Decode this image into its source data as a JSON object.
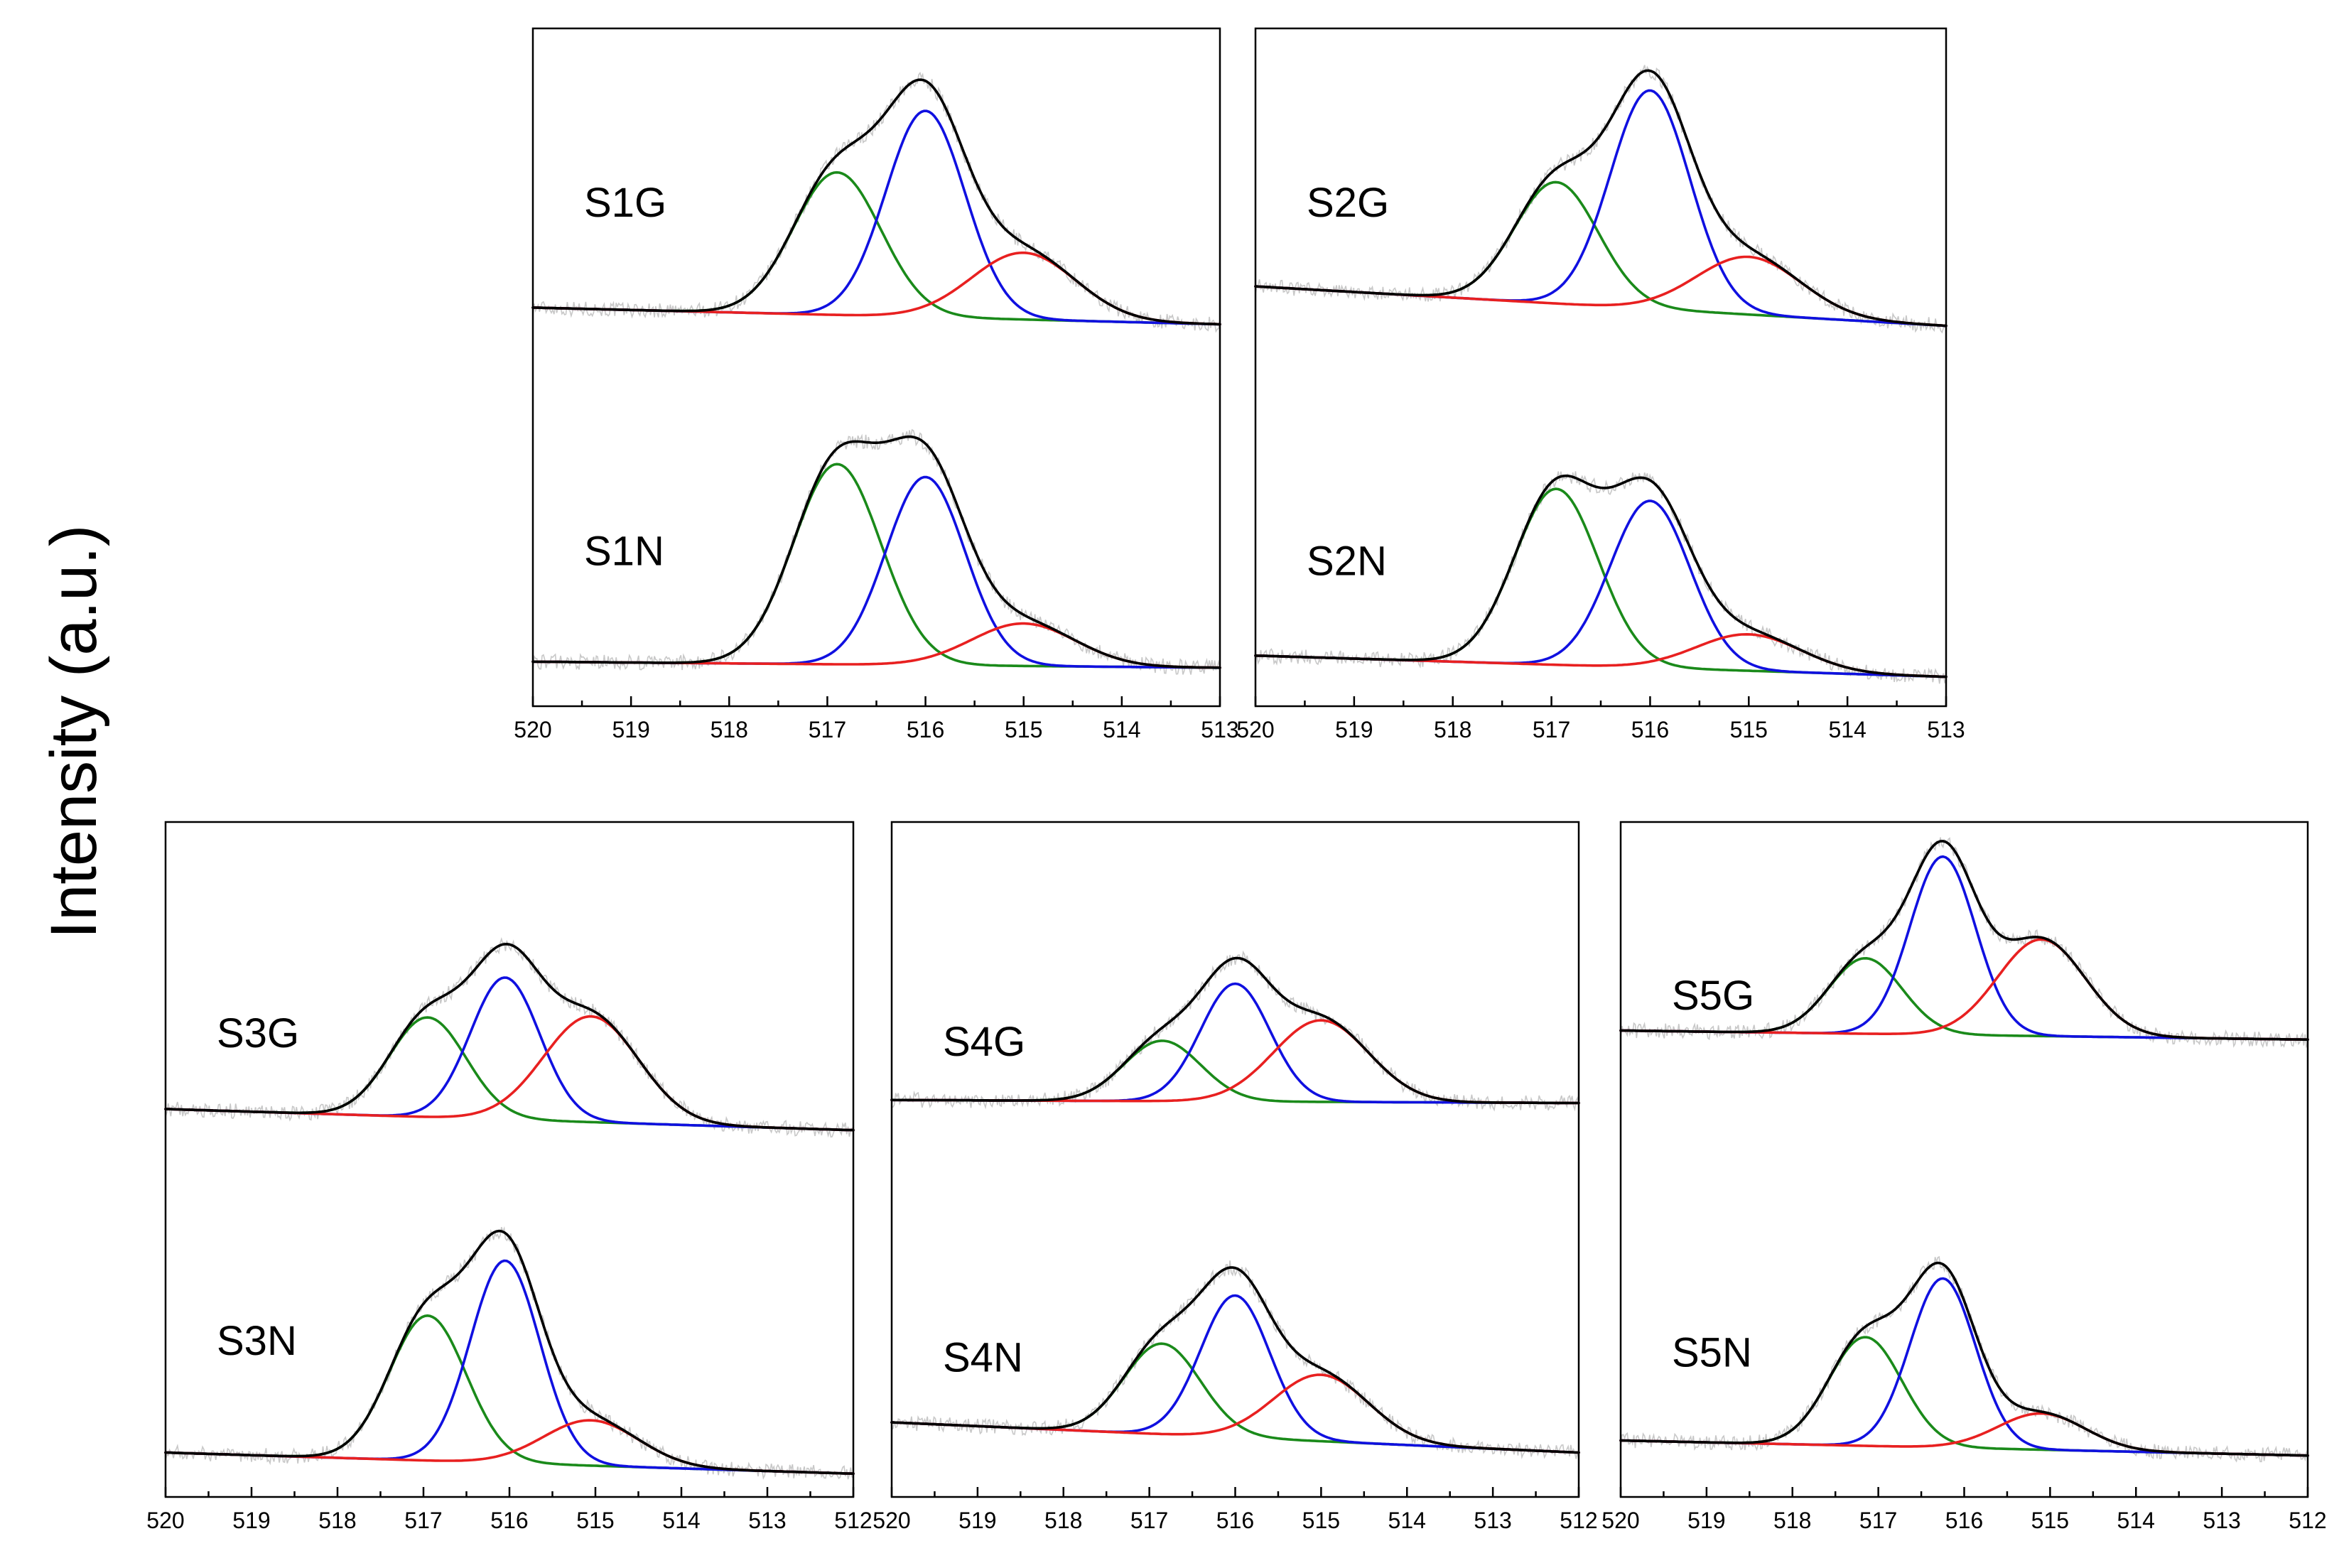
{
  "y_axis_label": "Intensity (a.u.)",
  "colors": {
    "envelope": "#000000",
    "peak_517": "#1a8a1a",
    "peak_516": "#1010e0",
    "peak_515": "#e82020",
    "raw": "#c8c8c8"
  },
  "chart_data": [
    {
      "type": "line",
      "panel": "top-left",
      "x_reversed": true,
      "xlim": [
        520,
        513
      ],
      "x_ticks": [
        "520",
        "519",
        "518",
        "517",
        "516",
        "515",
        "514",
        "513"
      ],
      "xlabel": "",
      "ylabel": "Intensity (a.u.)",
      "samples": [
        {
          "name": "S1G",
          "baseline_left": 0.15,
          "baseline_right": 0.095,
          "peaks": [
            {
              "center": 516.9,
              "fwhm": 1.05,
              "height": 0.47
            },
            {
              "center": 516.0,
              "fwhm": 0.95,
              "height": 0.68
            },
            {
              "center": 515.0,
              "fwhm": 1.25,
              "height": 0.22
            }
          ]
        },
        {
          "name": "S1N",
          "baseline_left": 0.1,
          "baseline_right": 0.08,
          "peaks": [
            {
              "center": 516.9,
              "fwhm": 1.05,
              "height": 0.66
            },
            {
              "center": 516.0,
              "fwhm": 0.95,
              "height": 0.62
            },
            {
              "center": 515.0,
              "fwhm": 1.25,
              "height": 0.14
            }
          ]
        }
      ]
    },
    {
      "type": "line",
      "panel": "top-right",
      "x_reversed": true,
      "xlim": [
        520,
        513
      ],
      "x_ticks": [
        "520",
        "519",
        "518",
        "517",
        "516",
        "515",
        "514",
        "513"
      ],
      "xlabel": "",
      "ylabel": "Intensity (a.u.)",
      "samples": [
        {
          "name": "S2G",
          "baseline_left": 0.22,
          "baseline_right": 0.09,
          "peaks": [
            {
              "center": 516.95,
              "fwhm": 1.0,
              "height": 0.4
            },
            {
              "center": 516.0,
              "fwhm": 0.95,
              "height": 0.72
            },
            {
              "center": 515.0,
              "fwhm": 1.25,
              "height": 0.19
            }
          ]
        },
        {
          "name": "S2N",
          "baseline_left": 0.12,
          "baseline_right": 0.05,
          "peaks": [
            {
              "center": 516.95,
              "fwhm": 1.0,
              "height": 0.58
            },
            {
              "center": 516.0,
              "fwhm": 0.95,
              "height": 0.55
            },
            {
              "center": 515.0,
              "fwhm": 1.25,
              "height": 0.12
            }
          ]
        }
      ]
    },
    {
      "type": "line",
      "panel": "bottom-left",
      "x_reversed": true,
      "xlim": [
        520,
        512
      ],
      "x_ticks": [
        "520",
        "519",
        "518",
        "517",
        "516",
        "515",
        "514",
        "513",
        "512"
      ],
      "xlabel": "",
      "ylabel": "Intensity (a.u.)",
      "samples": [
        {
          "name": "S3G",
          "baseline_left": 0.12,
          "baseline_right": 0.05,
          "peaks": [
            {
              "center": 516.95,
              "fwhm": 1.05,
              "height": 0.33
            },
            {
              "center": 516.05,
              "fwhm": 0.95,
              "height": 0.47
            },
            {
              "center": 515.05,
              "fwhm": 1.3,
              "height": 0.35
            }
          ]
        },
        {
          "name": "S3N",
          "baseline_left": 0.1,
          "baseline_right": 0.03,
          "peaks": [
            {
              "center": 516.95,
              "fwhm": 1.05,
              "height": 0.48
            },
            {
              "center": 516.05,
              "fwhm": 0.95,
              "height": 0.67
            },
            {
              "center": 515.05,
              "fwhm": 1.3,
              "height": 0.15
            }
          ]
        }
      ]
    },
    {
      "type": "line",
      "panel": "bottom-middle",
      "x_reversed": true,
      "xlim": [
        520,
        512
      ],
      "x_ticks": [
        "520",
        "519",
        "518",
        "517",
        "516",
        "515",
        "514",
        "513",
        "512"
      ],
      "xlabel": "",
      "ylabel": "Intensity (a.u.)",
      "samples": [
        {
          "name": "S4G",
          "baseline_left": 0.15,
          "baseline_right": 0.14,
          "peaks": [
            {
              "center": 516.85,
              "fwhm": 1.05,
              "height": 0.2
            },
            {
              "center": 516.0,
              "fwhm": 0.95,
              "height": 0.39
            },
            {
              "center": 515.0,
              "fwhm": 1.3,
              "height": 0.27
            }
          ]
        },
        {
          "name": "S4N",
          "baseline_left": 0.2,
          "baseline_right": 0.1,
          "peaks": [
            {
              "center": 516.85,
              "fwhm": 1.05,
              "height": 0.3
            },
            {
              "center": 516.0,
              "fwhm": 0.95,
              "height": 0.47
            },
            {
              "center": 515.0,
              "fwhm": 1.3,
              "height": 0.22
            }
          ]
        }
      ]
    },
    {
      "type": "line",
      "panel": "bottom-right",
      "x_reversed": true,
      "xlim": [
        520,
        512
      ],
      "x_ticks": [
        "520",
        "519",
        "518",
        "517",
        "516",
        "515",
        "514",
        "513",
        "512"
      ],
      "xlabel": "",
      "ylabel": "Intensity (a.u.)",
      "samples": [
        {
          "name": "S5G",
          "baseline_left": 0.38,
          "baseline_right": 0.35,
          "peaks": [
            {
              "center": 517.15,
              "fwhm": 1.0,
              "height": 0.25
            },
            {
              "center": 516.25,
              "fwhm": 0.9,
              "height": 0.59
            },
            {
              "center": 515.1,
              "fwhm": 1.2,
              "height": 0.32
            }
          ]
        },
        {
          "name": "S5N",
          "baseline_left": 0.14,
          "baseline_right": 0.09,
          "peaks": [
            {
              "center": 517.15,
              "fwhm": 1.0,
              "height": 0.36
            },
            {
              "center": 516.25,
              "fwhm": 0.9,
              "height": 0.56
            },
            {
              "center": 515.1,
              "fwhm": 1.2,
              "height": 0.12
            }
          ]
        }
      ]
    }
  ]
}
